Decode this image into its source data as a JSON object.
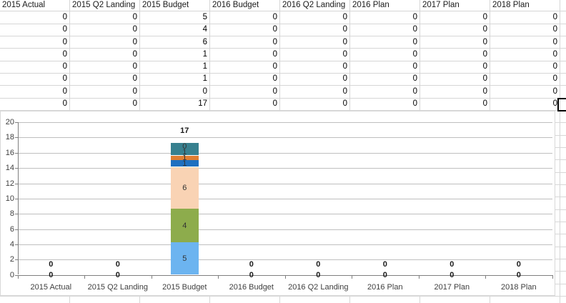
{
  "table": {
    "columns": [
      "2015 Actual",
      "2015 Q2 Landing",
      "2015 Budget",
      "2016 Budget",
      "2016 Q2 Landing",
      "2016 Plan",
      "2017 Plan",
      "2018 Plan"
    ],
    "rows": [
      [
        "0",
        "0",
        "5",
        "0",
        "0",
        "0",
        "0",
        "0"
      ],
      [
        "0",
        "0",
        "4",
        "0",
        "0",
        "0",
        "0",
        "0"
      ],
      [
        "0",
        "0",
        "6",
        "0",
        "0",
        "0",
        "0",
        "0"
      ],
      [
        "0",
        "0",
        "1",
        "0",
        "0",
        "0",
        "0",
        "0"
      ],
      [
        "0",
        "0",
        "1",
        "0",
        "0",
        "0",
        "0",
        "0"
      ],
      [
        "0",
        "0",
        "1",
        "0",
        "0",
        "0",
        "0",
        "0"
      ],
      [
        "0",
        "0",
        "0",
        "0",
        "0",
        "0",
        "0",
        "0"
      ],
      [
        "0",
        "0",
        "17",
        "0",
        "0",
        "0",
        "0",
        "0"
      ]
    ]
  },
  "chart_data": {
    "type": "bar",
    "stacked": true,
    "title": "",
    "xlabel": "",
    "ylabel": "",
    "ylim": [
      0,
      20
    ],
    "ytick_step": 2,
    "grid": true,
    "legend": false,
    "categories": [
      "2015 Actual",
      "2015 Q2 Landing",
      "2015 Budget",
      "2016 Budget",
      "2016 Q2 Landing",
      "2016 Plan",
      "2017 Plan",
      "2018 Plan"
    ],
    "yticks": [
      "0",
      "2",
      "4",
      "6",
      "8",
      "10",
      "12",
      "14",
      "16",
      "18",
      "20"
    ],
    "series": [
      {
        "color": "#6CB4F0",
        "values": [
          0,
          0,
          5,
          0,
          0,
          0,
          0,
          0
        ]
      },
      {
        "color": "#8DAC4C",
        "values": [
          0,
          0,
          4,
          0,
          0,
          0,
          0,
          0
        ]
      },
      {
        "color": "#F9D3B4",
        "values": [
          0,
          0,
          6,
          0,
          0,
          0,
          0,
          0
        ]
      },
      {
        "color": "#1E6FC0",
        "values": [
          0,
          0,
          1,
          0,
          0,
          0,
          0,
          0
        ]
      },
      {
        "color": "#DE7E32",
        "values": [
          0,
          0,
          1,
          0,
          0,
          0,
          0,
          0
        ]
      },
      {
        "color": "#37808F",
        "values": [
          0,
          0,
          1,
          0,
          0,
          0,
          0,
          0
        ]
      },
      {
        "color": null,
        "values": [
          0,
          0,
          0,
          0,
          0,
          0,
          0,
          0
        ]
      }
    ],
    "stack_segments": [
      {
        "label": "5",
        "color": "#6CB4F0",
        "height_units": 4.25
      },
      {
        "label": "4",
        "color": "#8DAC4C",
        "height_units": 4.4
      },
      {
        "label": "6",
        "color": "#F9D3B4",
        "height_units": 5.5
      },
      {
        "label": "1",
        "color": "#1E6FC0",
        "height_units": 0.9
      },
      {
        "label": "1",
        "color": "#DE7E32",
        "height_units": 0.6
      },
      {
        "label": "1",
        "color": "#37808F",
        "height_units": 1.65
      },
      {
        "label": "0",
        "color": null,
        "height_units": 0
      }
    ],
    "total_labels": [
      "0",
      "0",
      "17",
      "0",
      "0",
      "0",
      "0",
      "0"
    ],
    "baseline_labels": [
      "0",
      "0",
      null,
      "0",
      "0",
      "0",
      "0",
      "0"
    ]
  }
}
